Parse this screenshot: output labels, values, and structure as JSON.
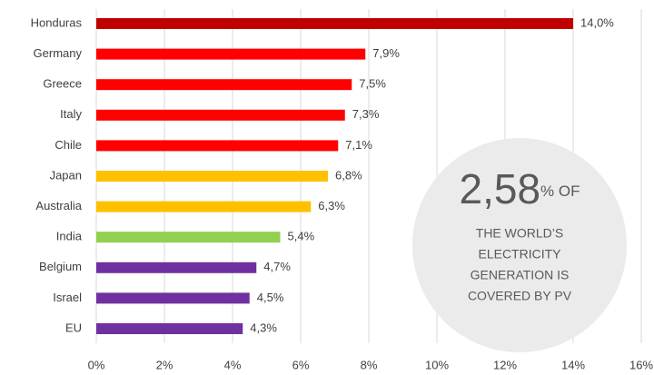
{
  "chart_data": {
    "type": "bar",
    "orientation": "horizontal",
    "categories": [
      "Honduras",
      "Germany",
      "Greece",
      "Italy",
      "Chile",
      "Japan",
      "Australia",
      "India",
      "Belgium",
      "Israel",
      "EU"
    ],
    "values": [
      14.0,
      7.9,
      7.5,
      7.3,
      7.1,
      6.8,
      6.3,
      5.4,
      4.7,
      4.5,
      4.3
    ],
    "value_labels": [
      "14,0%",
      "7,9%",
      "7,5%",
      "7,3%",
      "7,1%",
      "6,8%",
      "6,3%",
      "5,4%",
      "4,7%",
      "4,5%",
      "4,3%"
    ],
    "colors": [
      "#c00000",
      "#ff0000",
      "#ff0000",
      "#ff0000",
      "#ff0000",
      "#ffc000",
      "#ffc000",
      "#92d050",
      "#7030a0",
      "#7030a0",
      "#7030a0"
    ],
    "xlim": [
      0,
      16
    ],
    "xticks": [
      {
        "value": 0,
        "label": "0%"
      },
      {
        "value": 2,
        "label": "2%"
      },
      {
        "value": 4,
        "label": "4%"
      },
      {
        "value": 6,
        "label": "6%"
      },
      {
        "value": 8,
        "label": "8%"
      },
      {
        "value": 10,
        "label": "10%"
      },
      {
        "value": 12,
        "label": "12%"
      },
      {
        "value": 14,
        "label": "14%"
      },
      {
        "value": 16,
        "label": "16%"
      }
    ],
    "grid": true,
    "annotation": {
      "number": "2,58",
      "suffix": "% OF",
      "lines": [
        "THE WORLD’S",
        "ELECTRICITY",
        "GENERATION IS",
        "COVERED BY PV"
      ]
    }
  }
}
